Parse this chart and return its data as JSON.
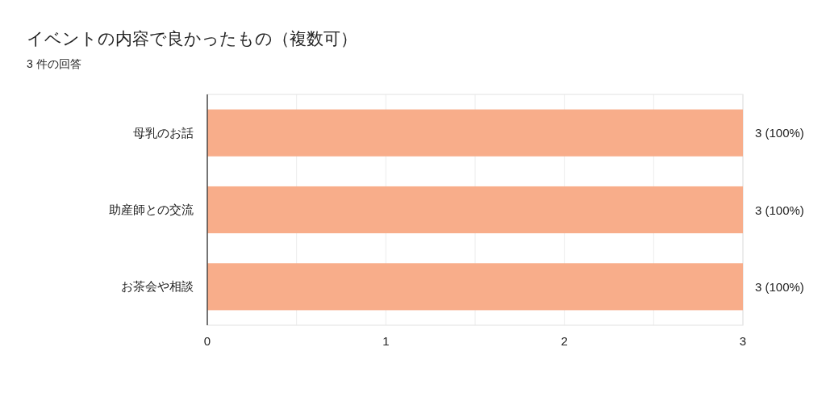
{
  "chart_data": {
    "type": "bar",
    "orientation": "horizontal",
    "title": "イベントの内容で良かったもの（複数可）",
    "subtitle": "3 件の回答",
    "categories": [
      "母乳のお話",
      "助産師との交流",
      "お茶会や相談"
    ],
    "values": [
      3,
      3,
      3
    ],
    "color": "#f8ad8a",
    "value_labels": [
      "3 (100%)",
      "3 (100%)",
      "3 (100%)"
    ],
    "xlim": [
      0,
      3
    ],
    "xticks": [
      0,
      {
        "value": 0.5,
        "label": null
      },
      1,
      {
        "value": 1.5,
        "label": null
      },
      2,
      {
        "value": 2.5,
        "label": null
      },
      3
    ],
    "grid": "x"
  }
}
